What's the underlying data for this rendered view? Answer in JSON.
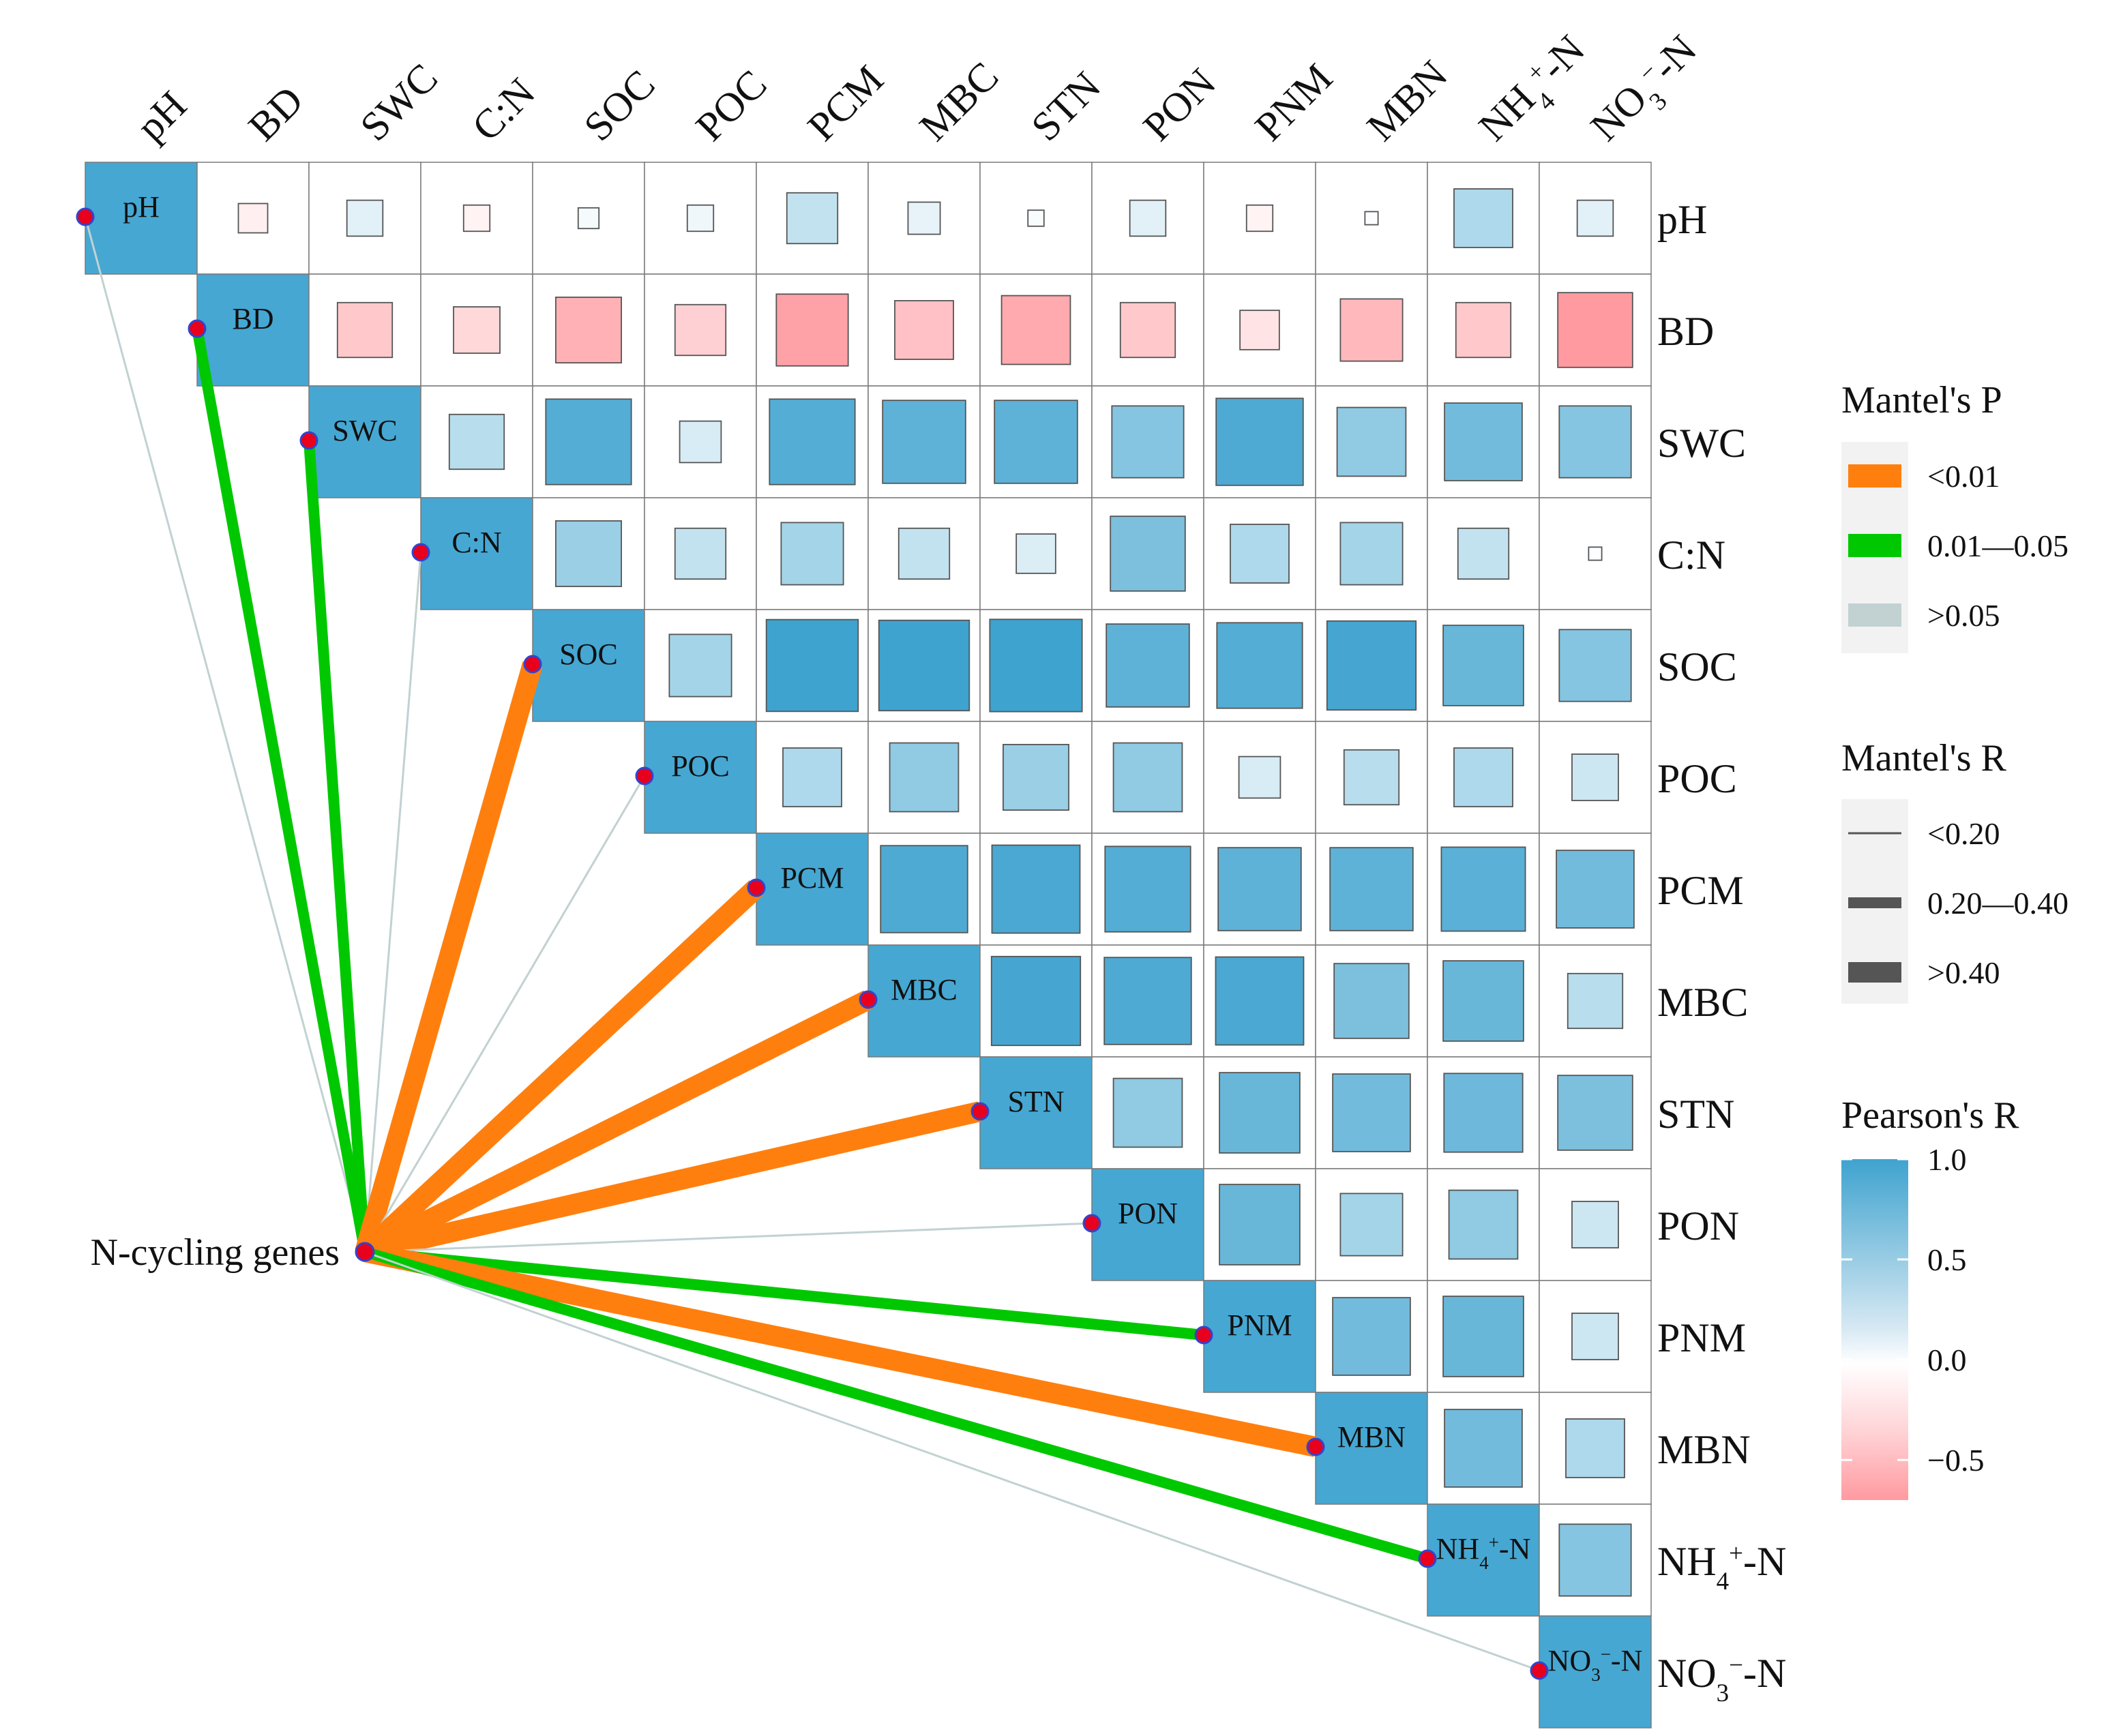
{
  "chart_data": {
    "type": "heatmap",
    "title": "",
    "variables": [
      "pH",
      "BD",
      "SWC",
      "C:N",
      "SOC",
      "POC",
      "PCM",
      "MBC",
      "STN",
      "PON",
      "PNM",
      "MBN",
      "NH4+-N",
      "NO3−-N"
    ],
    "variable_labels": [
      {
        "base": "pH"
      },
      {
        "base": "BD"
      },
      {
        "base": "SWC"
      },
      {
        "base": "C:N"
      },
      {
        "base": "SOC"
      },
      {
        "base": "POC"
      },
      {
        "base": "PCM"
      },
      {
        "base": "MBC"
      },
      {
        "base": "STN"
      },
      {
        "base": "PON"
      },
      {
        "base": "PNM"
      },
      {
        "base": "MBN"
      },
      {
        "base": "NH",
        "sub": "4",
        "sup": "+",
        "suffix": "-N"
      },
      {
        "base": "NO",
        "sub": "3",
        "sup": "−",
        "suffix": "-N"
      }
    ],
    "pearson_r_upper": [
      [
        1.0,
        -0.1,
        0.15,
        -0.08,
        0.05,
        0.08,
        0.3,
        0.12,
        0.03,
        0.15,
        -0.08,
        0.02,
        0.4,
        0.15
      ],
      [
        null,
        1.0,
        -0.35,
        -0.25,
        -0.5,
        -0.3,
        -0.6,
        -0.4,
        -0.55,
        -0.35,
        -0.18,
        -0.45,
        -0.35,
        -0.65
      ],
      [
        null,
        null,
        1.0,
        0.35,
        0.85,
        0.2,
        0.85,
        0.8,
        0.8,
        0.6,
        0.88,
        0.55,
        0.7,
        0.6
      ],
      [
        null,
        null,
        null,
        1.0,
        0.5,
        0.3,
        0.45,
        0.3,
        0.18,
        0.65,
        0.4,
        0.45,
        0.3,
        0.02
      ],
      [
        null,
        null,
        null,
        null,
        1.0,
        0.45,
        0.98,
        0.95,
        0.99,
        0.8,
        0.85,
        0.92,
        0.75,
        0.6
      ],
      [
        null,
        null,
        null,
        null,
        null,
        1.0,
        0.4,
        0.55,
        0.5,
        0.55,
        0.2,
        0.35,
        0.4,
        0.25
      ],
      [
        null,
        null,
        null,
        null,
        null,
        null,
        1.0,
        0.88,
        0.9,
        0.85,
        0.8,
        0.8,
        0.82,
        0.7
      ],
      [
        null,
        null,
        null,
        null,
        null,
        null,
        null,
        1.0,
        0.92,
        0.88,
        0.9,
        0.65,
        0.75,
        0.35
      ],
      [
        null,
        null,
        null,
        null,
        null,
        null,
        null,
        null,
        1.0,
        0.55,
        0.75,
        0.7,
        0.72,
        0.65
      ],
      [
        null,
        null,
        null,
        null,
        null,
        null,
        null,
        null,
        null,
        1.0,
        0.75,
        0.45,
        0.55,
        0.25
      ],
      [
        null,
        null,
        null,
        null,
        null,
        null,
        null,
        null,
        null,
        null,
        1.0,
        0.7,
        0.75,
        0.25
      ],
      [
        null,
        null,
        null,
        null,
        null,
        null,
        null,
        null,
        null,
        null,
        null,
        1.0,
        0.7,
        0.4
      ],
      [
        null,
        null,
        null,
        null,
        null,
        null,
        null,
        null,
        null,
        null,
        null,
        null,
        1.0,
        0.6
      ],
      [
        null,
        null,
        null,
        null,
        null,
        null,
        null,
        null,
        null,
        null,
        null,
        null,
        null,
        1.0
      ]
    ],
    "mantel": {
      "source": "N-cycling genes",
      "links": [
        {
          "target": "pH",
          "p_class": ">0.05",
          "r_class": "<0.20"
        },
        {
          "target": "BD",
          "p_class": "0.01—0.05",
          "r_class": "0.20—0.40"
        },
        {
          "target": "SWC",
          "p_class": "0.01—0.05",
          "r_class": "0.20—0.40"
        },
        {
          "target": "C:N",
          "p_class": ">0.05",
          "r_class": "<0.20"
        },
        {
          "target": "SOC",
          "p_class": "<0.01",
          "r_class": ">0.40"
        },
        {
          "target": "POC",
          "p_class": ">0.05",
          "r_class": "<0.20"
        },
        {
          "target": "PCM",
          "p_class": "<0.01",
          "r_class": ">0.40"
        },
        {
          "target": "MBC",
          "p_class": "<0.01",
          "r_class": ">0.40"
        },
        {
          "target": "STN",
          "p_class": "<0.01",
          "r_class": ">0.40"
        },
        {
          "target": "PON",
          "p_class": ">0.05",
          "r_class": "<0.20"
        },
        {
          "target": "PNM",
          "p_class": "0.01—0.05",
          "r_class": "0.20—0.40"
        },
        {
          "target": "MBN",
          "p_class": "<0.01",
          "r_class": ">0.40"
        },
        {
          "target": "NH4+-N",
          "p_class": "0.01—0.05",
          "r_class": "0.20—0.40"
        },
        {
          "target": "NO3−-N",
          "p_class": ">0.05",
          "r_class": "<0.20"
        }
      ]
    },
    "legend": {
      "placement": "right",
      "mantel_p": {
        "title": "Mantel's P",
        "items": [
          {
            "label": "<0.01",
            "color": "#ff7f0e"
          },
          {
            "label": "0.01—0.05",
            "color": "#00c800"
          },
          {
            "label": ">0.05",
            "color": "#c2d1d1"
          }
        ]
      },
      "mantel_r": {
        "title": "Mantel's R",
        "items": [
          {
            "label": "<0.20",
            "level": 1
          },
          {
            "label": "0.20—0.40",
            "level": 2
          },
          {
            "label": ">0.40",
            "level": 3
          }
        ]
      },
      "pearson_r": {
        "title": "Pearson's R",
        "range": [
          -0.7,
          1.0
        ],
        "ticks": [
          1.0,
          0.5,
          0.0,
          -0.5
        ],
        "tick_labels": [
          "1.0",
          "0.5",
          "0.0",
          "−0.5"
        ]
      }
    },
    "colors": {
      "positive": "#3fa3cf",
      "negative": "#ff9aa0",
      "neutral": "#ffffff",
      "diagonal": "#46a7d2",
      "node_fill": "#e8001c",
      "node_stroke": "#3344cc",
      "grid": "#7a7a7a"
    }
  }
}
